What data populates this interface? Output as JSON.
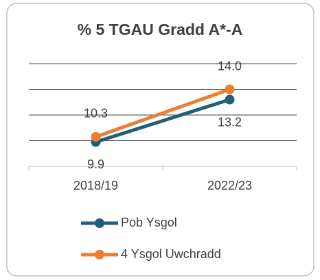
{
  "chart_data": {
    "type": "line",
    "title": "% 5 TGAU Gradd A*-A",
    "categories": [
      "2018/19",
      "2022/23"
    ],
    "series": [
      {
        "name": "Pob Ysgol",
        "color": "#1f5f7a",
        "values": [
          9.9,
          13.2
        ],
        "value_labels": [
          "9.9",
          "13.2"
        ],
        "label_position": "below"
      },
      {
        "name": "4 Ysgol Uwchradd",
        "color": "#ed7d31",
        "values": [
          10.3,
          14.0
        ],
        "value_labels": [
          "10.3",
          "14.0"
        ],
        "label_position": "above"
      }
    ],
    "ylim": [
      8,
      16
    ],
    "yticks": [
      8,
      10,
      12,
      14,
      16
    ],
    "grid": true,
    "legend": "bottom"
  }
}
